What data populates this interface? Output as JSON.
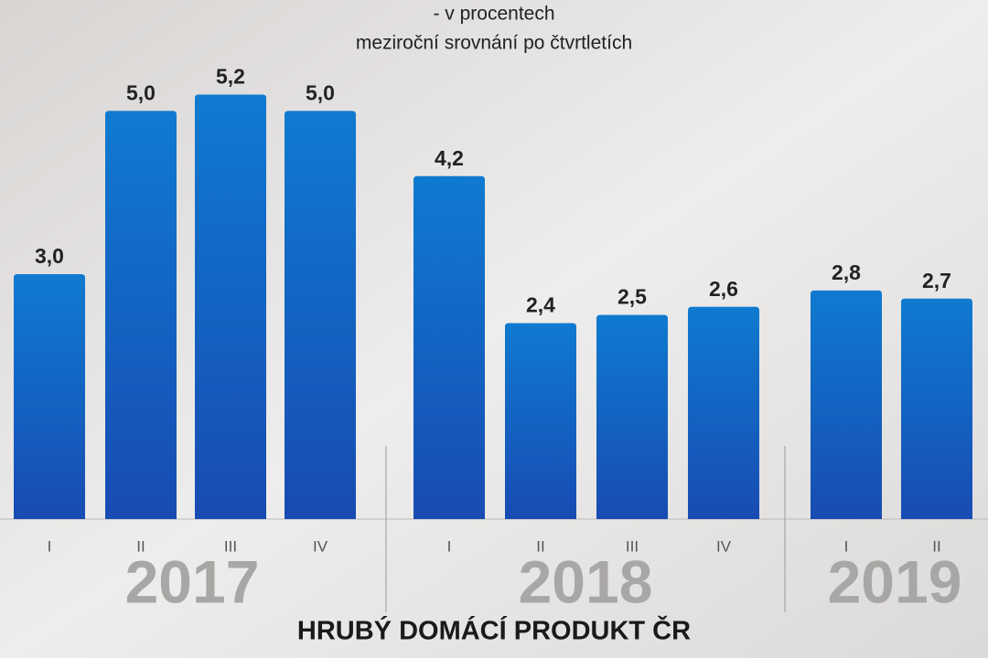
{
  "chart_data": {
    "type": "bar",
    "title": "HRUBÝ DOMÁCÍ PRODUKT ČR",
    "subtitle": [
      "- v procentech",
      "meziroční srovnání po čtvrtletích"
    ],
    "color": "#1766c8",
    "ylim": [
      0,
      6
    ],
    "groups": [
      {
        "label": "2017",
        "categories": [
          "I",
          "II",
          "III",
          "IV"
        ],
        "values": [
          3.0,
          5.0,
          5.2,
          5.0
        ],
        "value_labels": [
          "3,0",
          "5,0",
          "5,2",
          "5,0"
        ]
      },
      {
        "label": "2018",
        "categories": [
          "I",
          "II",
          "III",
          "IV"
        ],
        "values": [
          4.2,
          2.4,
          2.5,
          2.6
        ],
        "value_labels": [
          "4,2",
          "2,4",
          "2,5",
          "2,6"
        ]
      },
      {
        "label": "2019",
        "categories": [
          "I",
          "II"
        ],
        "values": [
          2.8,
          2.7
        ],
        "value_labels": [
          "2,8",
          "2,7"
        ]
      }
    ]
  }
}
